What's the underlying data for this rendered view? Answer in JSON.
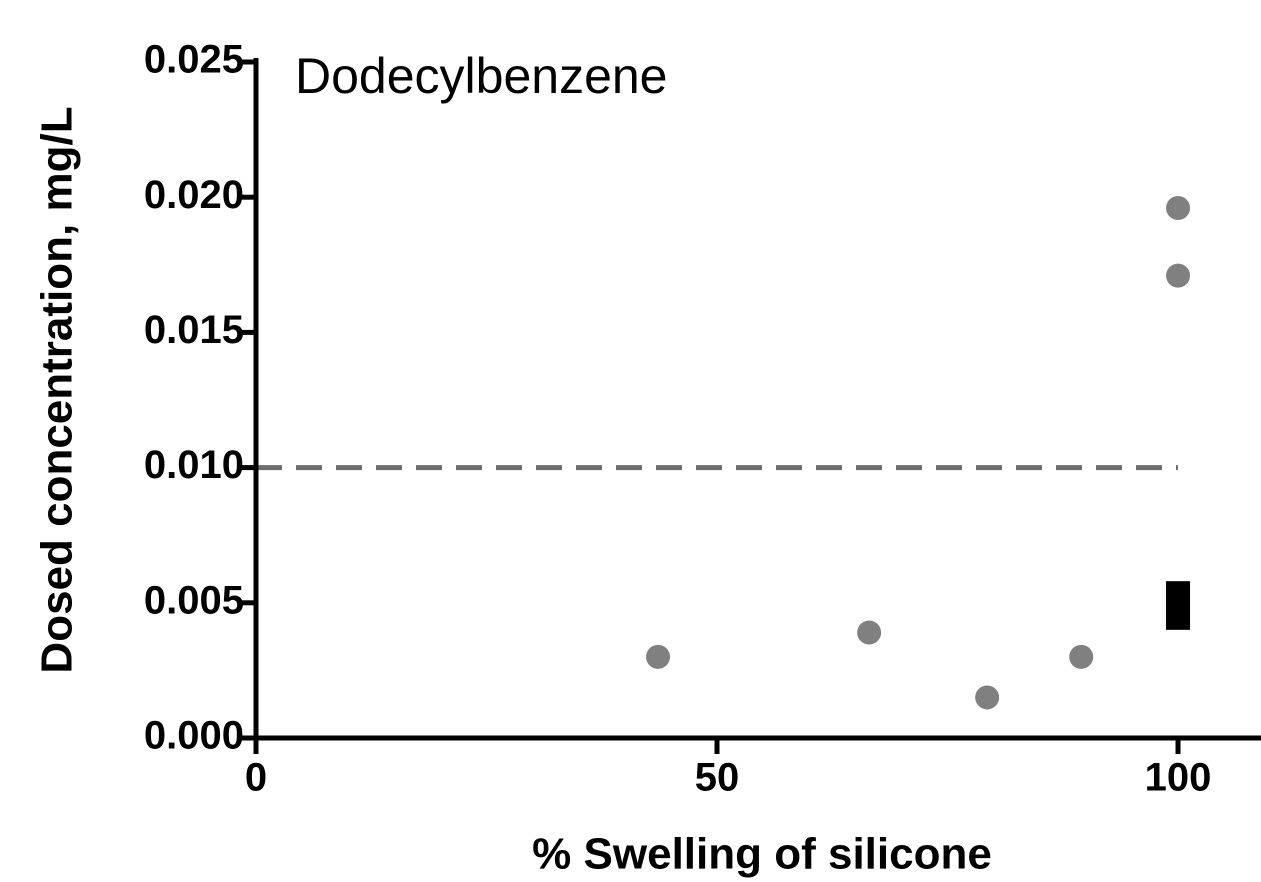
{
  "chart_data": {
    "type": "scatter",
    "title": "Dodecylbenzene",
    "xlabel": "% Swelling of silicone",
    "ylabel": "Dosed concentration, mg/L",
    "xlim": [
      0,
      109
    ],
    "xticks": [
      0,
      50,
      100
    ],
    "ylim": [
      0,
      0.025
    ],
    "yticks": [
      {
        "value": 0,
        "label": "0.000"
      },
      0.005,
      {
        "value": 0.01,
        "label": "0.010"
      },
      0.015,
      {
        "value": 0.02,
        "label": "0.020"
      },
      0.025
    ],
    "series": [
      {
        "color": "#808080",
        "x": [
          43.6,
          66.5,
          79.3,
          89.5,
          100,
          100
        ],
        "values": [
          0.003,
          0.0039,
          0.0015,
          0.003,
          0.0196,
          0.0171
        ]
      }
    ],
    "ranges": [
      {
        "color": "#000000",
        "x": 100,
        "low": 0.004,
        "high": 0.0058
      }
    ],
    "hline": {
      "value": 0.01,
      "x_end": 100,
      "color": "#6d6d6d",
      "dashed": true
    }
  }
}
